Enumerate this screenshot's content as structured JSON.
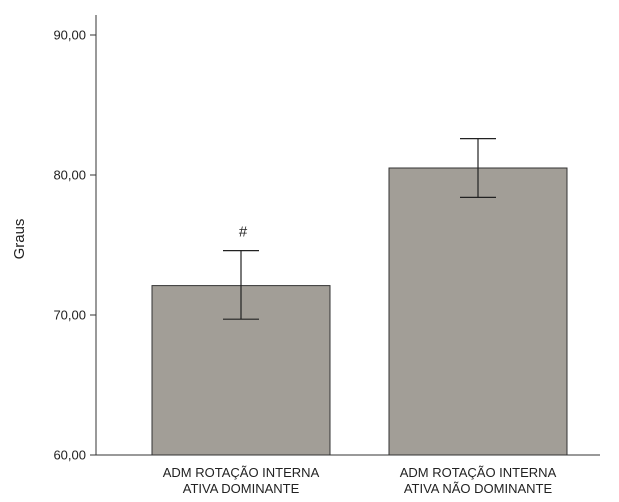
{
  "chart_data": {
    "type": "bar",
    "title": "",
    "xlabel": "",
    "ylabel": "Graus",
    "ylim": [
      60,
      90
    ],
    "yticks": [
      "60,00",
      "70,00",
      "80,00",
      "90,00"
    ],
    "ytick_values": [
      60,
      70,
      80,
      90
    ],
    "grid": false,
    "legend": "none",
    "categories": [
      [
        "ADM ROTAÇÃO INTERNA",
        "ATIVA DOMINANTE"
      ],
      [
        "ADM ROTAÇÃO INTERNA",
        "ATIVA NÃO DOMINANTE"
      ]
    ],
    "values": [
      72.1,
      80.5
    ],
    "error_low": [
      69.7,
      78.4
    ],
    "error_high": [
      74.6,
      82.6
    ],
    "annotations": [
      "#",
      ""
    ],
    "bar_color": "#a29e97",
    "bar_edge_color": "#333333"
  }
}
